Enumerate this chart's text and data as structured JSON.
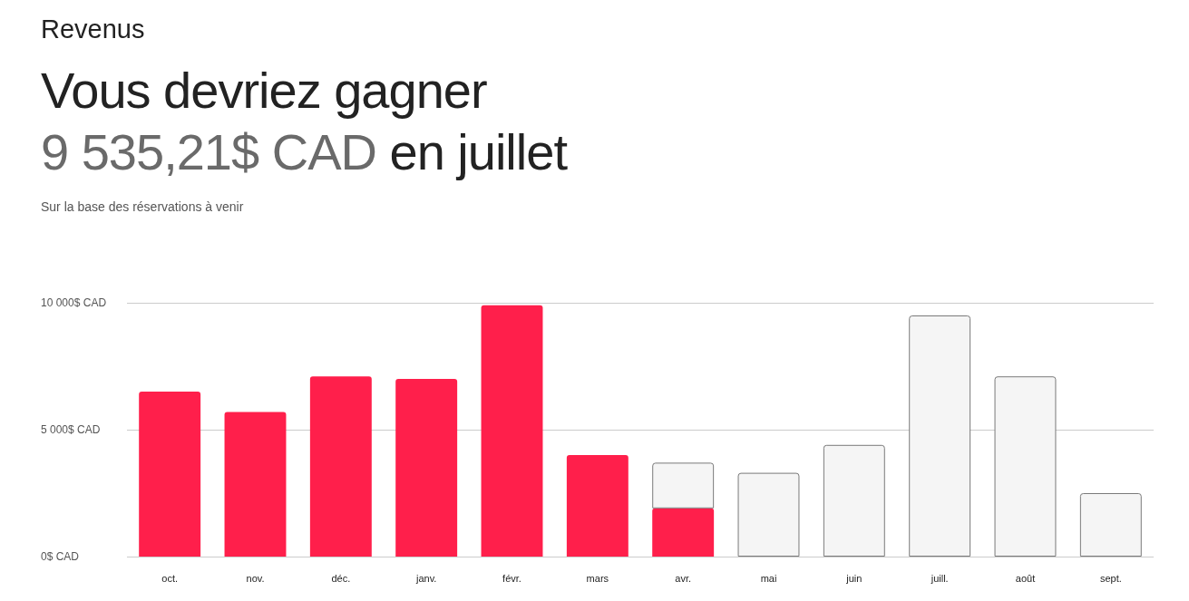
{
  "chart_data": {
    "type": "bar",
    "title": "Revenus",
    "subtitle": "Sur la base des réservations à venir",
    "annotations": [
      "Vous devriez gagner",
      "9 535,21$ CAD",
      "en juillet"
    ],
    "categories": [
      "oct.",
      "nov.",
      "déc.",
      "janv.",
      "févr.",
      "mars",
      "avr.",
      "mai",
      "juin",
      "juill.",
      "août",
      "sept."
    ],
    "stacked": true,
    "series": [
      {
        "color": "#ff1f4b",
        "values": [
          6500,
          5700,
          7100,
          7000,
          9900,
          4000,
          1900,
          null,
          null,
          null,
          null,
          null
        ]
      },
      {
        "color": "#f5f5f5",
        "values": [
          null,
          null,
          null,
          null,
          null,
          null,
          1800,
          3300,
          4400,
          9500,
          7100,
          2500
        ]
      }
    ],
    "ylim": [
      0,
      10000
    ],
    "yticks": [
      {
        "value": 0,
        "label": "0$ CAD"
      },
      {
        "value": 5000,
        "label": "5 000$ CAD"
      },
      {
        "value": 10000,
        "label": "10 000$ CAD"
      }
    ],
    "grid": "y"
  }
}
